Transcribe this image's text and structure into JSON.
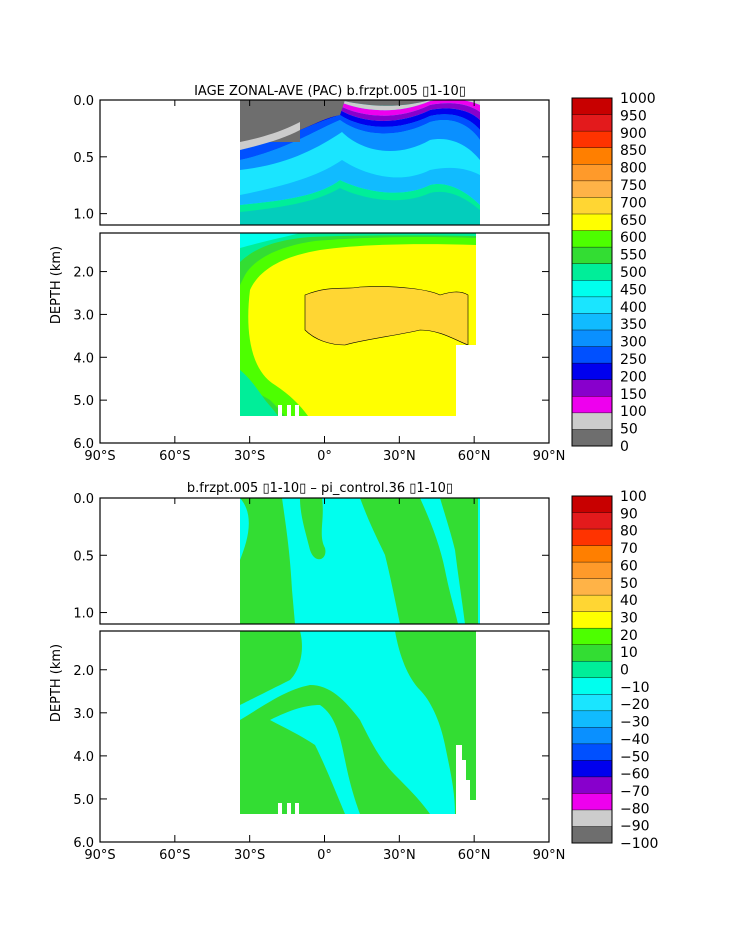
{
  "chart_data": [
    {
      "type": "contour",
      "title": "IAGE ZONAL-AVE (PAC) b.frzpt.005 ▯1-10▯",
      "ylabel": "DEPTH (km)",
      "xlabel": "",
      "x_ticks": [
        "90°S",
        "60°S",
        "30°S",
        "0°",
        "30°N",
        "60°N",
        "90°N"
      ],
      "x_tick_values": [
        -90,
        -60,
        -30,
        0,
        30,
        60,
        90
      ],
      "upper_y_ticks": [
        "0.0",
        "0.5",
        "1.0"
      ],
      "upper_y_tick_values": [
        0.0,
        0.5,
        1.0
      ],
      "lower_y_ticks": [
        "2.0",
        "3.0",
        "4.0",
        "5.0",
        "6.0"
      ],
      "lower_y_tick_values": [
        2.0,
        3.0,
        4.0,
        5.0,
        6.0
      ],
      "xlim": [
        -90,
        90
      ],
      "ylim_upper": [
        0.0,
        1.1
      ],
      "ylim_lower": [
        1.1,
        6.0
      ],
      "data_xlim": [
        -34,
        62
      ],
      "colorbar_labels": [
        "1000",
        "950",
        "900",
        "850",
        "800",
        "750",
        "700",
        "650",
        "600",
        "550",
        "500",
        "450",
        "400",
        "350",
        "300",
        "250",
        "200",
        "150",
        "100",
        "50",
        "0"
      ],
      "colorbar_colors": [
        "#c80000",
        "#e31a1c",
        "#ff3300",
        "#ff7f00",
        "#ff9a2a",
        "#ffb347",
        "#ffd633",
        "#ffff00",
        "#4dff00",
        "#33dd33",
        "#00ee99",
        "#00ffee",
        "#1ae5ff",
        "#11bbff",
        "#0a90ff",
        "#0050ff",
        "#0000ee",
        "#8800cc",
        "#ee00ee",
        "#cccccc",
        "#6e6e6e"
      ]
    },
    {
      "type": "contour",
      "title": "b.frzpt.005 ▯1-10▯ – pi_control.36 ▯1-10▯",
      "ylabel": "DEPTH (km)",
      "xlabel": "",
      "x_ticks": [
        "90°S",
        "60°S",
        "30°S",
        "0°",
        "30°N",
        "60°N",
        "90°N"
      ],
      "x_tick_values": [
        -90,
        -60,
        -30,
        0,
        30,
        60,
        90
      ],
      "upper_y_ticks": [
        "0.0",
        "0.5",
        "1.0"
      ],
      "upper_y_tick_values": [
        0.0,
        0.5,
        1.0
      ],
      "lower_y_ticks": [
        "2.0",
        "3.0",
        "4.0",
        "5.0",
        "6.0"
      ],
      "lower_y_tick_values": [
        2.0,
        3.0,
        4.0,
        5.0,
        6.0
      ],
      "xlim": [
        -90,
        90
      ],
      "ylim_upper": [
        0.0,
        1.1
      ],
      "ylim_lower": [
        1.1,
        6.0
      ],
      "data_xlim": [
        -34,
        62
      ],
      "colorbar_labels": [
        "100",
        "90",
        "80",
        "70",
        "60",
        "50",
        "40",
        "30",
        "20",
        "10",
        "0",
        "−10",
        "−20",
        "−30",
        "−40",
        "−50",
        "−60",
        "−70",
        "−80",
        "−90",
        "−100"
      ],
      "colorbar_colors": [
        "#c80000",
        "#e31a1c",
        "#ff3300",
        "#ff7f00",
        "#ff9a2a",
        "#ffb347",
        "#ffd633",
        "#ffff00",
        "#4dff00",
        "#33dd33",
        "#00ee99",
        "#00ffee",
        "#1ae5ff",
        "#11bbff",
        "#0a90ff",
        "#0050ff",
        "#0000ee",
        "#8800cc",
        "#ee00ee",
        "#cccccc",
        "#6e6e6e"
      ]
    }
  ]
}
